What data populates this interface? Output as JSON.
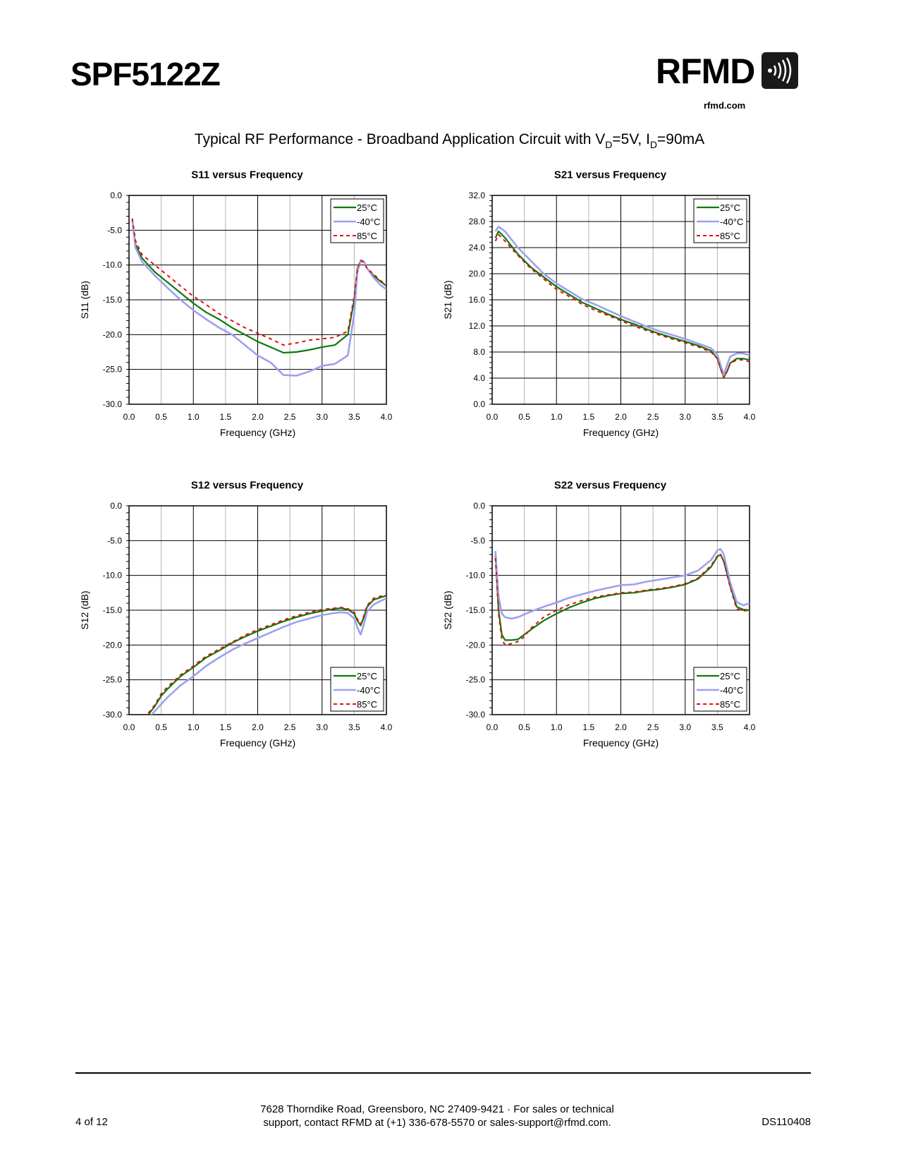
{
  "header": {
    "part_number": "SPF5122Z",
    "logo_text": "RFMD",
    "logo_url": "rfmd.com",
    "title_main": "Typical RF Performance - Broadband Application Circuit with V",
    "title_sub1": "D",
    "title_mid": "=5V, I",
    "title_sub2": "D",
    "title_end": "=90mA"
  },
  "colors": {
    "s25": "#0a7a0a",
    "s40": "#9f9ff0",
    "s85": "#e01010"
  },
  "chart_data": [
    {
      "id": "s11",
      "type": "line",
      "title": "S11 versus Frequency",
      "xlabel": "Frequency (GHz)",
      "ylabel": "S11 (dB)",
      "xlim": [
        0,
        4
      ],
      "ylim": [
        -30,
        0
      ],
      "xticks": [
        "0.0",
        "0.5",
        "1.0",
        "1.5",
        "2.0",
        "2.5",
        "3.0",
        "3.5",
        "4.0"
      ],
      "yticks": [
        "-30.0",
        "-25.0",
        "-20.0",
        "-15.0",
        "-10.0",
        "-5.0",
        "0.0"
      ],
      "legend_position": "top-right",
      "series": [
        {
          "name": "25°C",
          "x": [
            0.05,
            0.1,
            0.2,
            0.4,
            0.6,
            0.8,
            1.0,
            1.2,
            1.4,
            1.6,
            1.8,
            2.0,
            2.2,
            2.4,
            2.6,
            2.8,
            3.0,
            3.2,
            3.4,
            3.5,
            3.55,
            3.6,
            3.65,
            3.7,
            3.8,
            3.9,
            4.0
          ],
          "y": [
            -3.5,
            -7,
            -9,
            -11,
            -12.5,
            -14,
            -15.5,
            -16.8,
            -17.8,
            -19,
            -20,
            -21,
            -21.8,
            -22.6,
            -22.5,
            -22.2,
            -21.8,
            -21.5,
            -20,
            -15,
            -10.5,
            -9.5,
            -9.5,
            -10.5,
            -11.5,
            -12.3,
            -13
          ]
        },
        {
          "name": "-40°C",
          "x": [
            0.05,
            0.1,
            0.2,
            0.4,
            0.6,
            0.8,
            1.0,
            1.2,
            1.4,
            1.6,
            1.8,
            2.0,
            2.2,
            2.4,
            2.6,
            2.8,
            3.0,
            3.2,
            3.4,
            3.5,
            3.55,
            3.6,
            3.65,
            3.7,
            3.8,
            3.9,
            4.0
          ],
          "y": [
            -3.5,
            -7.5,
            -9.5,
            -11.5,
            -13.3,
            -15,
            -16.5,
            -17.8,
            -19,
            -20,
            -21.5,
            -23,
            -24,
            -25.8,
            -25.9,
            -25.3,
            -24.5,
            -24.2,
            -23,
            -17,
            -11,
            -9.3,
            -9.5,
            -10.5,
            -11.8,
            -12.8,
            -13.5
          ]
        },
        {
          "name": "85°C",
          "x": [
            0.05,
            0.1,
            0.2,
            0.4,
            0.6,
            0.8,
            1.0,
            1.2,
            1.4,
            1.6,
            1.8,
            2.0,
            2.2,
            2.4,
            2.6,
            2.8,
            3.0,
            3.2,
            3.4,
            3.5,
            3.55,
            3.6,
            3.65,
            3.7,
            3.8,
            3.9,
            4.0
          ],
          "y": [
            -3.3,
            -6.5,
            -8.5,
            -10,
            -11.5,
            -13,
            -14.5,
            -15.7,
            -17,
            -18,
            -19,
            -19.8,
            -20.6,
            -21.5,
            -21.2,
            -20.8,
            -20.6,
            -20.4,
            -19.5,
            -14.5,
            -10.5,
            -9.3,
            -9.6,
            -10.5,
            -11.3,
            -12.2,
            -12.8
          ]
        }
      ]
    },
    {
      "id": "s21",
      "type": "line",
      "title": "S21 versus Frequency",
      "xlabel": "Frequency (GHz)",
      "ylabel": "S21 (dB)",
      "xlim": [
        0,
        4
      ],
      "ylim": [
        0,
        32
      ],
      "xticks": [
        "0.0",
        "0.5",
        "1.0",
        "1.5",
        "2.0",
        "2.5",
        "3.0",
        "3.5",
        "4.0"
      ],
      "yticks": [
        "0.0",
        "4.0",
        "8.0",
        "12.0",
        "16.0",
        "20.0",
        "24.0",
        "28.0",
        "32.0"
      ],
      "legend_position": "top-right",
      "series": [
        {
          "name": "25°C",
          "x": [
            0.05,
            0.1,
            0.2,
            0.4,
            0.6,
            0.8,
            1.0,
            1.2,
            1.4,
            1.6,
            1.8,
            2.0,
            2.2,
            2.4,
            2.6,
            2.8,
            3.0,
            3.2,
            3.4,
            3.5,
            3.55,
            3.6,
            3.65,
            3.7,
            3.8,
            3.9,
            4.0
          ],
          "y": [
            25.5,
            26.5,
            25.5,
            23,
            21,
            19.5,
            18,
            16.8,
            15.6,
            14.7,
            13.8,
            13,
            12.3,
            11.5,
            10.8,
            10.2,
            9.6,
            9,
            8.2,
            7,
            5.5,
            4.2,
            5,
            6.3,
            7,
            7,
            6.8
          ]
        },
        {
          "name": "-40°C",
          "x": [
            0.05,
            0.1,
            0.2,
            0.4,
            0.6,
            0.8,
            1.0,
            1.2,
            1.4,
            1.6,
            1.8,
            2.0,
            2.2,
            2.4,
            2.6,
            2.8,
            3.0,
            3.2,
            3.4,
            3.5,
            3.55,
            3.6,
            3.65,
            3.7,
            3.8,
            3.9,
            4.0
          ],
          "y": [
            26.5,
            27.2,
            26.5,
            24,
            22,
            20,
            18.5,
            17.3,
            16.1,
            15.3,
            14.4,
            13.5,
            12.7,
            11.9,
            11.2,
            10.6,
            10,
            9.3,
            8.6,
            7.6,
            6,
            4.5,
            6,
            7.3,
            7.8,
            7.8,
            7.5
          ]
        },
        {
          "name": "85°C",
          "x": [
            0.05,
            0.1,
            0.2,
            0.4,
            0.6,
            0.8,
            1.0,
            1.2,
            1.4,
            1.6,
            1.8,
            2.0,
            2.2,
            2.4,
            2.6,
            2.8,
            3.0,
            3.2,
            3.4,
            3.5,
            3.55,
            3.6,
            3.65,
            3.7,
            3.8,
            3.9,
            4.0
          ],
          "y": [
            25,
            26,
            25,
            22.8,
            20.8,
            19.2,
            17.6,
            16.5,
            15.3,
            14.4,
            13.6,
            12.8,
            12,
            11.3,
            10.6,
            10,
            9.4,
            8.8,
            8,
            7,
            5.5,
            4,
            5,
            6.2,
            6.8,
            6.8,
            6.5
          ]
        }
      ]
    },
    {
      "id": "s12",
      "type": "line",
      "title": "S12 versus Frequency",
      "xlabel": "Frequency (GHz)",
      "ylabel": "S12 (dB)",
      "xlim": [
        0,
        4
      ],
      "ylim": [
        -30,
        0
      ],
      "xticks": [
        "0.0",
        "0.5",
        "1.0",
        "1.5",
        "2.0",
        "2.5",
        "3.0",
        "3.5",
        "4.0"
      ],
      "yticks": [
        "-30.0",
        "-25.0",
        "-20.0",
        "-15.0",
        "-10.0",
        "-5.0",
        "0.0"
      ],
      "legend_position": "bottom-right",
      "series": [
        {
          "name": "25°C",
          "x": [
            0.3,
            0.4,
            0.5,
            0.6,
            0.8,
            1.0,
            1.2,
            1.4,
            1.6,
            1.8,
            2.0,
            2.2,
            2.4,
            2.6,
            2.8,
            3.0,
            3.2,
            3.3,
            3.4,
            3.5,
            3.55,
            3.6,
            3.65,
            3.7,
            3.8,
            3.9,
            4.0
          ],
          "y": [
            -30,
            -28.8,
            -27.3,
            -26.3,
            -24.5,
            -23.2,
            -21.8,
            -20.8,
            -19.7,
            -18.8,
            -18,
            -17.3,
            -16.6,
            -16,
            -15.5,
            -15.1,
            -14.8,
            -14.7,
            -14.9,
            -15.5,
            -16.5,
            -17.2,
            -16,
            -14.5,
            -13.5,
            -13.2,
            -12.9
          ]
        },
        {
          "name": "-40°C",
          "x": [
            0.3,
            0.4,
            0.5,
            0.6,
            0.8,
            1.0,
            1.2,
            1.4,
            1.6,
            1.8,
            2.0,
            2.2,
            2.4,
            2.6,
            2.8,
            3.0,
            3.2,
            3.3,
            3.4,
            3.5,
            3.55,
            3.6,
            3.65,
            3.7,
            3.8,
            3.9,
            4.0
          ],
          "y": [
            -30.5,
            -29.5,
            -28.5,
            -27.5,
            -25.8,
            -24.5,
            -23,
            -21.8,
            -20.7,
            -19.8,
            -19,
            -18.2,
            -17.4,
            -16.7,
            -16.2,
            -15.7,
            -15.4,
            -15.3,
            -15.4,
            -16.2,
            -17.5,
            -18.5,
            -17,
            -15.2,
            -14.2,
            -13.7,
            -13.3
          ]
        },
        {
          "name": "85°C",
          "x": [
            0.3,
            0.4,
            0.5,
            0.6,
            0.8,
            1.0,
            1.2,
            1.4,
            1.6,
            1.8,
            2.0,
            2.2,
            2.4,
            2.6,
            2.8,
            3.0,
            3.2,
            3.3,
            3.4,
            3.5,
            3.55,
            3.6,
            3.65,
            3.7,
            3.8,
            3.9,
            4.0
          ],
          "y": [
            -29.8,
            -28.6,
            -27,
            -26,
            -24.3,
            -23,
            -21.6,
            -20.6,
            -19.6,
            -18.6,
            -17.8,
            -17.1,
            -16.4,
            -15.8,
            -15.3,
            -14.9,
            -14.7,
            -14.6,
            -14.8,
            -15.3,
            -16.3,
            -17,
            -15.8,
            -14.3,
            -13.3,
            -13,
            -12.8
          ]
        }
      ]
    },
    {
      "id": "s22",
      "type": "line",
      "title": "S22 versus Frequency",
      "xlabel": "Frequency (GHz)",
      "ylabel": "S22 (dB)",
      "xlim": [
        0,
        4
      ],
      "ylim": [
        -30,
        0
      ],
      "xticks": [
        "0.0",
        "0.5",
        "1.0",
        "1.5",
        "2.0",
        "2.5",
        "3.0",
        "3.5",
        "4.0"
      ],
      "yticks": [
        "-30.0",
        "-25.0",
        "-20.0",
        "-15.0",
        "-10.0",
        "-5.0",
        "0.0"
      ],
      "legend_position": "bottom-right",
      "series": [
        {
          "name": "25°C",
          "x": [
            0.05,
            0.1,
            0.15,
            0.2,
            0.3,
            0.4,
            0.5,
            0.6,
            0.8,
            1.0,
            1.2,
            1.4,
            1.6,
            1.8,
            2.0,
            2.2,
            2.4,
            2.6,
            2.8,
            3.0,
            3.2,
            3.4,
            3.5,
            3.55,
            3.6,
            3.7,
            3.8,
            3.9,
            4.0
          ],
          "y": [
            -7,
            -15,
            -18.5,
            -19.3,
            -19.3,
            -19.2,
            -18.5,
            -17.8,
            -16.5,
            -15.5,
            -14.6,
            -13.9,
            -13.3,
            -12.9,
            -12.6,
            -12.5,
            -12.2,
            -12,
            -11.7,
            -11.3,
            -10.5,
            -8.8,
            -7.3,
            -7,
            -8,
            -11.5,
            -14.5,
            -14.9,
            -15
          ]
        },
        {
          "name": "-40°C",
          "x": [
            0.05,
            0.1,
            0.15,
            0.2,
            0.3,
            0.4,
            0.5,
            0.6,
            0.8,
            1.0,
            1.2,
            1.4,
            1.6,
            1.8,
            2.0,
            2.2,
            2.4,
            2.6,
            2.8,
            3.0,
            3.2,
            3.4,
            3.5,
            3.55,
            3.6,
            3.7,
            3.8,
            3.9,
            4.0
          ],
          "y": [
            -6.5,
            -13,
            -15.5,
            -16,
            -16.2,
            -16,
            -15.6,
            -15.2,
            -14.5,
            -13.9,
            -13.2,
            -12.7,
            -12.2,
            -11.8,
            -11.4,
            -11.3,
            -10.9,
            -10.6,
            -10.3,
            -10,
            -9.3,
            -7.8,
            -6.4,
            -6.2,
            -7,
            -11,
            -13.8,
            -14.3,
            -14
          ]
        },
        {
          "name": "85°C",
          "x": [
            0.05,
            0.1,
            0.15,
            0.2,
            0.3,
            0.4,
            0.5,
            0.6,
            0.8,
            1.0,
            1.2,
            1.4,
            1.6,
            1.8,
            2.0,
            2.2,
            2.4,
            2.6,
            2.8,
            3.0,
            3.2,
            3.4,
            3.5,
            3.55,
            3.6,
            3.7,
            3.8,
            3.9,
            4.0
          ],
          "y": [
            -7.5,
            -15.5,
            -19.2,
            -20,
            -19.8,
            -19.5,
            -18.8,
            -17.6,
            -16,
            -15,
            -14.2,
            -13.6,
            -13.1,
            -12.8,
            -12.5,
            -12.4,
            -12.1,
            -11.9,
            -11.6,
            -11.2,
            -10.4,
            -8.6,
            -7.2,
            -7,
            -8,
            -11.7,
            -14.8,
            -15.1,
            -15
          ]
        }
      ]
    }
  ],
  "footer": {
    "page": "4 of 12",
    "address_line1": "7628 Thorndike Road, Greensboro, NC  27409-9421 · For sales or technical",
    "address_line2": "support, contact RFMD at (+1) 336-678-5570 or sales-support@rfmd.com.",
    "doc_id": "DS110408"
  }
}
